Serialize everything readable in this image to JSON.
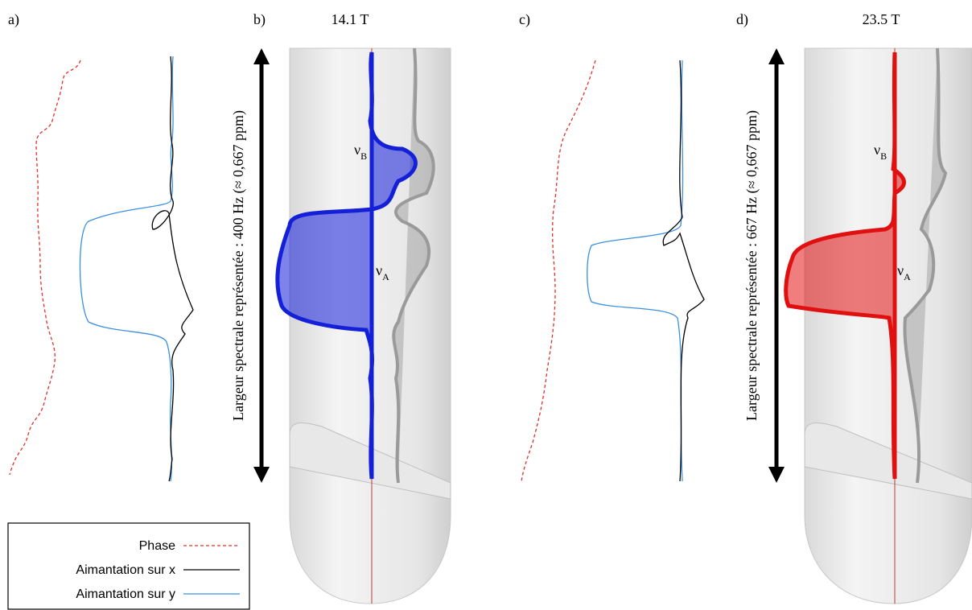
{
  "panels": [
    {
      "label": "a)"
    },
    {
      "label": "b)",
      "field": "14.1 T",
      "axis_label": "Largeur spectrale représentée : 400 Hz (≈ 0,667 ppm)",
      "peak_b": {
        "symbol": "ν",
        "subscript": "B"
      },
      "peak_a": {
        "symbol": "ν",
        "subscript": "A"
      }
    },
    {
      "label": "c)"
    },
    {
      "label": "d)",
      "field": "23.5 T",
      "axis_label": "Largeur spectrale représentée : 667 Hz (≈ 0,667 ppm)",
      "peak_b": {
        "symbol": "ν",
        "subscript": "B"
      },
      "peak_a": {
        "symbol": "ν",
        "subscript": "A"
      }
    }
  ],
  "legend": {
    "entries": [
      "Phase",
      "Aimantation sur x",
      "Aimantation sur y"
    ]
  }
}
